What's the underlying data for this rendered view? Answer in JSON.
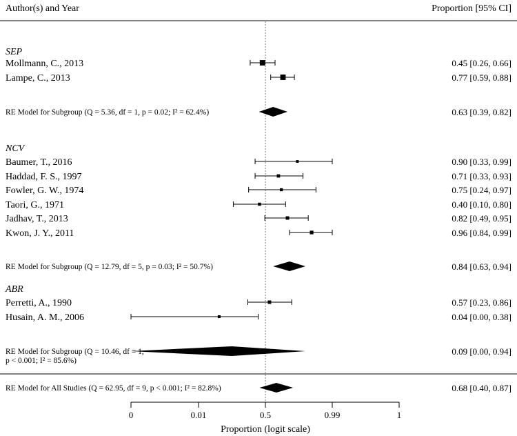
{
  "chart_data": {
    "type": "forest",
    "header_left": "Author(s) and Year",
    "header_right": "Proportion [95% CI]",
    "xlabel": "Proportion (logit scale)",
    "ticks": [
      {
        "label": "0",
        "value": 0.0001
      },
      {
        "label": "0.01",
        "value": 0.01
      },
      {
        "label": "0.5",
        "value": 0.5
      },
      {
        "label": "0.99",
        "value": 0.99
      },
      {
        "label": "1",
        "value": 0.9999
      }
    ],
    "reference_line": 0.5,
    "subgroups": [
      {
        "name": "SEP",
        "studies": [
          {
            "label": "Mollmann, C., 2013",
            "est": 0.45,
            "lo": 0.26,
            "hi": 0.66,
            "ci_text": "0.45 [0.26, 0.66]",
            "weight": 2.2
          },
          {
            "label": "Lampe, C., 2013",
            "est": 0.77,
            "lo": 0.59,
            "hi": 0.88,
            "ci_text": "0.77 [0.59, 0.88]",
            "weight": 2.2
          }
        ],
        "summary": {
          "label_lines": [
            "RE Model for Subgroup (Q = 5.36, df = 1, p = 0.02; I² = 62.4%)"
          ],
          "est": 0.63,
          "lo": 0.39,
          "hi": 0.82,
          "ci_text": "0.63 [0.39, 0.82]"
        }
      },
      {
        "name": "NCV",
        "studies": [
          {
            "label": "Baumer, T., 2016",
            "est": 0.9,
            "lo": 0.33,
            "hi": 0.99,
            "ci_text": "0.90 [0.33, 0.99]",
            "weight": 0.4
          },
          {
            "label": "Haddad, F. S., 1997",
            "est": 0.71,
            "lo": 0.33,
            "hi": 0.93,
            "ci_text": "0.71 [0.33, 0.93]",
            "weight": 0.8
          },
          {
            "label": "Fowler, G. W., 1974",
            "est": 0.75,
            "lo": 0.24,
            "hi": 0.97,
            "ci_text": "0.75 [0.24, 0.97]",
            "weight": 0.6
          },
          {
            "label": "Taori, G., 1971",
            "est": 0.4,
            "lo": 0.1,
            "hi": 0.8,
            "ci_text": "0.40 [0.10, 0.80]",
            "weight": 0.7
          },
          {
            "label": "Jadhav, T., 2013",
            "est": 0.82,
            "lo": 0.49,
            "hi": 0.95,
            "ci_text": "0.82 [0.49, 0.95]",
            "weight": 0.9
          },
          {
            "label": "Kwon, J. Y., 2011",
            "est": 0.96,
            "lo": 0.84,
            "hi": 0.99,
            "ci_text": "0.96 [0.84, 0.99]",
            "weight": 1.0
          }
        ],
        "summary": {
          "label_lines": [
            "RE Model for Subgroup (Q = 12.79, df = 5, p = 0.03; I² = 50.7%)"
          ],
          "est": 0.84,
          "lo": 0.63,
          "hi": 0.94,
          "ci_text": "0.84 [0.63, 0.94]"
        }
      },
      {
        "name": "ABR",
        "studies": [
          {
            "label": "Perretti, A., 1990",
            "est": 0.57,
            "lo": 0.23,
            "hi": 0.86,
            "ci_text": "0.57 [0.23, 0.86]",
            "weight": 0.9
          },
          {
            "label": "Husain, A. M., 2006",
            "est": 0.04,
            "lo": 0.0,
            "hi": 0.38,
            "ci_text": "0.04 [0.00, 0.38]",
            "weight": 0.5
          }
        ],
        "summary": {
          "label_lines": [
            "RE Model for Subgroup (Q = 10.46, df = 1,",
            "p < 0.001; I² = 85.6%)"
          ],
          "est": 0.09,
          "lo": 0.0,
          "hi": 0.94,
          "ci_text": "0.09 [0.00, 0.94]"
        }
      }
    ],
    "overall": {
      "label_lines": [
        "RE Model for All Studies (Q = 62.95, df = 9, p < 0.001; I² = 82.8%)"
      ],
      "est": 0.68,
      "lo": 0.4,
      "hi": 0.87,
      "ci_text": "0.68 [0.40, 0.87]"
    }
  }
}
